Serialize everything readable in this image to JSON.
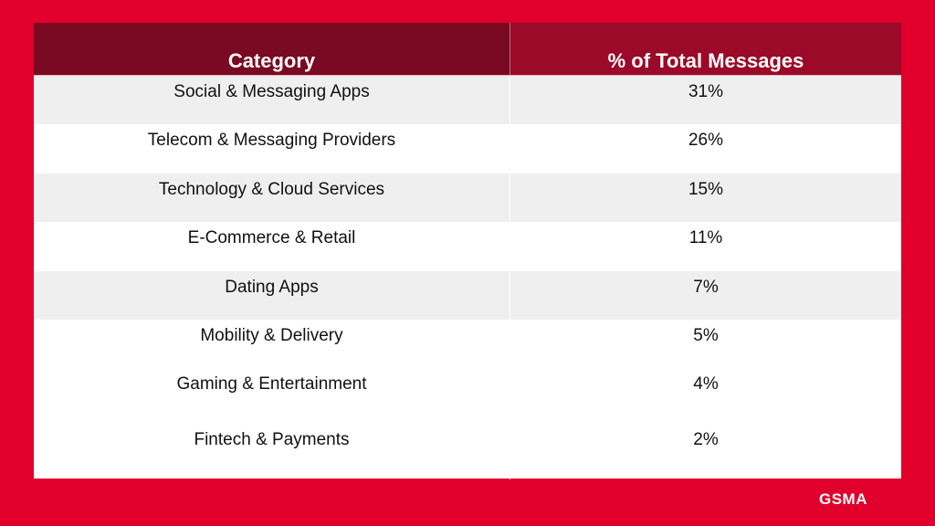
{
  "table": {
    "headers": [
      "Category",
      "% of Total Messages"
    ],
    "rows": [
      {
        "category": "Social & Messaging Apps",
        "percent": "31%"
      },
      {
        "category": "Telecom & Messaging Providers",
        "percent": "26%"
      },
      {
        "category": "Technology & Cloud Services",
        "percent": "15%"
      },
      {
        "category": "E-Commerce & Retail",
        "percent": "11%"
      },
      {
        "category": "Dating Apps",
        "percent": "7%"
      },
      {
        "category": "Mobility & Delivery",
        "percent": "5%"
      },
      {
        "category": "Gaming & Entertainment",
        "percent": "4%"
      },
      {
        "category": "Fintech & Payments",
        "percent": "2%"
      }
    ]
  },
  "logo": {
    "text": "GSMA"
  },
  "colors": {
    "background": "#e0002b",
    "header_col1": "#7a0a22",
    "header_col2": "#9b0a28",
    "row_alt": "#efefef"
  }
}
